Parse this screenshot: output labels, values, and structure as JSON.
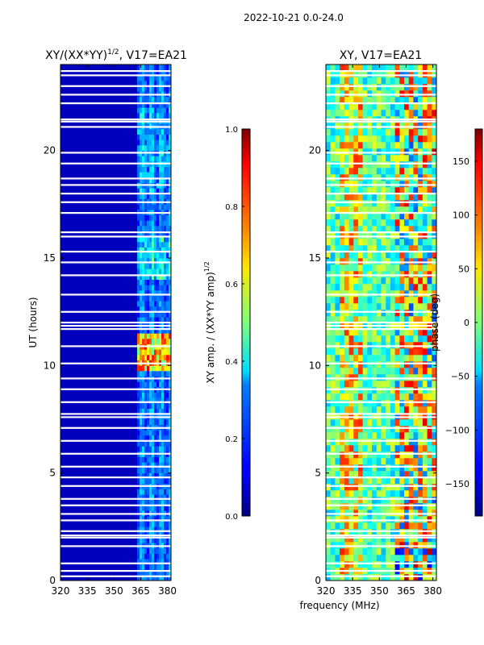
{
  "suptitle": "2022-10-21 0.0-24.0",
  "colors": {
    "white_row": "#ffffff",
    "frame": "#000000"
  },
  "chart_data": [
    {
      "type": "heatmap",
      "title": "XY/(XX*YY)^{1/2}, V17=EA21",
      "title_main": "XY/(XX*YY)",
      "title_sup": "1/2",
      "title_tail": ", V17=EA21",
      "xlabel": "",
      "ylabel": "UT (hours)",
      "xlim": [
        320,
        382
      ],
      "ylim": [
        0,
        24
      ],
      "xticks": [
        320,
        335,
        350,
        365,
        380
      ],
      "yticks": [
        0,
        5,
        10,
        15,
        20
      ],
      "colorbar": {
        "label": "XY amp. / (XX*YY amp)^{1/2}",
        "label_main": "XY amp. / (XX*YY amp)",
        "label_sup": "1/2",
        "range": [
          0.0,
          1.0
        ],
        "ticks": [
          "0.0",
          "0.2",
          "0.4",
          "0.6",
          "0.8",
          "1.0"
        ],
        "colormap": "jet"
      },
      "description_values": {
        "background_level": 0.05,
        "band_365_382_level": 0.2,
        "peak_band_hours": [
          10.0,
          11.5
        ],
        "peak_level": 0.8
      }
    },
    {
      "type": "heatmap",
      "title": "XY, V17=EA21",
      "xlabel": "frequency (MHz)",
      "ylabel": "",
      "xlim": [
        320,
        382
      ],
      "ylim": [
        0,
        24
      ],
      "xticks": [
        320,
        335,
        350,
        365,
        380
      ],
      "yticks": [
        0,
        5,
        10,
        15,
        20
      ],
      "colorbar": {
        "label": "phase (deg)",
        "range": [
          -180,
          180
        ],
        "ticks": [
          "150",
          "100",
          "50",
          "0",
          "−50",
          "−100",
          "−150"
        ],
        "tick_values": [
          150,
          100,
          50,
          0,
          -50,
          -100,
          -150
        ],
        "colormap": "jet"
      }
    }
  ],
  "flagged_hours": [
    0.2,
    0.45,
    0.8,
    1.6,
    2.0,
    2.1,
    2.3,
    2.8,
    3.1,
    3.5,
    3.8,
    4.4,
    4.8,
    5.3,
    5.9,
    6.5,
    7.1,
    7.6,
    7.75,
    8.3,
    8.9,
    9.4,
    10.1,
    10.9,
    11.7,
    11.85,
    12.0,
    12.5,
    13.3,
    14.2,
    14.8,
    15.3,
    16.0,
    16.2,
    17.1,
    17.6,
    18.0,
    18.4,
    18.7,
    19.4,
    19.9,
    21.1,
    21.35,
    21.45,
    22.2,
    22.6,
    23.0,
    23.5,
    23.7
  ]
}
